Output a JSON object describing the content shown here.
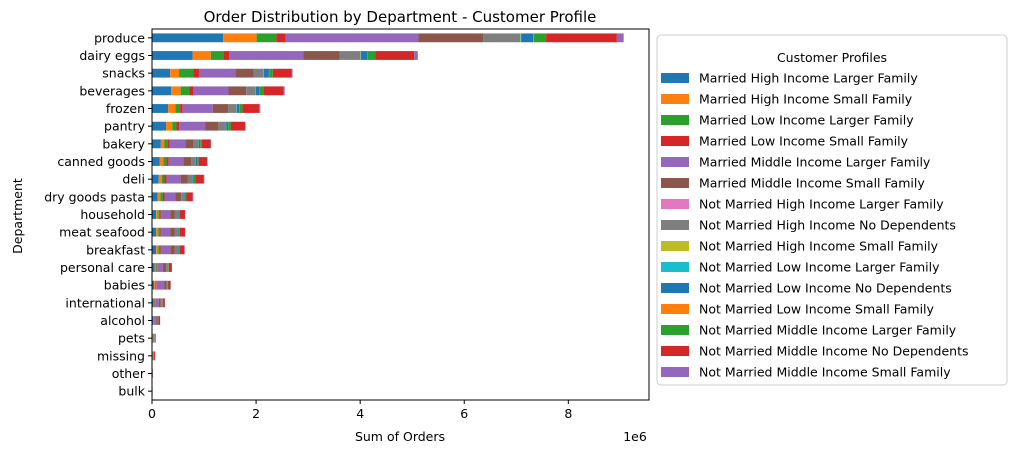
{
  "chart_data": {
    "type": "bar",
    "orientation": "horizontal",
    "stacked": true,
    "title": "Order Distribution by Department - Customer Profile",
    "xlabel": "Sum of Orders",
    "ylabel": "Department",
    "x_offset_label": "1e6",
    "xlim": [
      0,
      9.55
    ],
    "x_ticks": [
      0,
      2,
      4,
      6,
      8
    ],
    "x_tick_labels": [
      "0",
      "2",
      "4",
      "6",
      "8"
    ],
    "x_units": "millions of orders (x 1e6)",
    "grid": false,
    "legend": {
      "title": "Customer Profiles",
      "placement": "outside right"
    },
    "categories": [
      "produce",
      "dairy eggs",
      "snacks",
      "beverages",
      "frozen",
      "pantry",
      "bakery",
      "canned goods",
      "deli",
      "dry goods pasta",
      "household",
      "meat seafood",
      "breakfast",
      "personal care",
      "babies",
      "international",
      "alcohol",
      "pets",
      "missing",
      "other",
      "bulk"
    ],
    "series": [
      {
        "name": "Married High Income Larger Family",
        "color": "#1f77b4",
        "values": [
          1.37,
          0.78,
          0.35,
          0.37,
          0.31,
          0.27,
          0.17,
          0.15,
          0.13,
          0.11,
          0.08,
          0.08,
          0.08,
          0.05,
          0.04,
          0.03,
          0.02,
          0.01,
          0.01,
          0.003,
          0.002
        ]
      },
      {
        "name": "Married High Income Small Family",
        "color": "#ff7f0e",
        "values": [
          0.64,
          0.35,
          0.17,
          0.18,
          0.14,
          0.12,
          0.07,
          0.07,
          0.06,
          0.05,
          0.04,
          0.04,
          0.04,
          0.02,
          0.02,
          0.01,
          0.01,
          0.005,
          0.003,
          0.001,
          0.001
        ]
      },
      {
        "name": "Married Low Income Larger Family",
        "color": "#2ca02c",
        "values": [
          0.38,
          0.24,
          0.27,
          0.17,
          0.09,
          0.08,
          0.06,
          0.06,
          0.05,
          0.05,
          0.04,
          0.04,
          0.04,
          0.02,
          0.02,
          0.01,
          0.01,
          0.005,
          0.003,
          0.001,
          0.001
        ]
      },
      {
        "name": "Married Low Income Small Family",
        "color": "#d62728",
        "values": [
          0.18,
          0.11,
          0.12,
          0.08,
          0.05,
          0.05,
          0.04,
          0.04,
          0.04,
          0.03,
          0.02,
          0.02,
          0.02,
          0.01,
          0.01,
          0.01,
          0.005,
          0.003,
          0.002,
          0.001,
          0.0005
        ]
      },
      {
        "name": "Married Middle Income Larger Family",
        "color": "#9467bd",
        "values": [
          2.55,
          1.43,
          0.69,
          0.67,
          0.58,
          0.5,
          0.3,
          0.28,
          0.27,
          0.21,
          0.17,
          0.17,
          0.17,
          0.11,
          0.15,
          0.07,
          0.04,
          0.02,
          0.01,
          0.005,
          0.003
        ]
      },
      {
        "name": "Married Middle Income Small Family",
        "color": "#8c564b",
        "values": [
          1.25,
          0.7,
          0.35,
          0.34,
          0.29,
          0.26,
          0.16,
          0.15,
          0.14,
          0.11,
          0.09,
          0.09,
          0.09,
          0.06,
          0.04,
          0.04,
          0.02,
          0.01,
          0.005,
          0.002,
          0.001
        ]
      },
      {
        "name": "Not Married High Income Larger Family",
        "color": "#e377c2",
        "values": [
          0.003,
          0.002,
          0.001,
          0.001,
          0.001,
          0.001,
          0.0005,
          0.0005,
          0.0005,
          0.0005,
          0.0003,
          0.0003,
          0.0003,
          0.0002,
          0.0001,
          0.0001,
          0.0001,
          0.0001,
          0.0,
          0.0,
          0.0
        ]
      },
      {
        "name": "Not Married High Income No Dependents",
        "color": "#7f7f7f",
        "values": [
          0.7,
          0.39,
          0.19,
          0.18,
          0.16,
          0.14,
          0.09,
          0.08,
          0.08,
          0.06,
          0.05,
          0.05,
          0.05,
          0.03,
          0.02,
          0.02,
          0.01,
          0.005,
          0.003,
          0.001,
          0.001
        ]
      },
      {
        "name": "Not Married High Income Small Family",
        "color": "#bcbd22",
        "values": [
          0.01,
          0.005,
          0.003,
          0.003,
          0.003,
          0.002,
          0.002,
          0.002,
          0.002,
          0.001,
          0.001,
          0.001,
          0.001,
          0.0005,
          0.0005,
          0.0003,
          0.0002,
          0.0001,
          0.0001,
          0.0,
          0.0
        ]
      },
      {
        "name": "Not Married Low Income Larger Family",
        "color": "#17becf",
        "values": [
          0.01,
          0.005,
          0.003,
          0.003,
          0.003,
          0.002,
          0.002,
          0.002,
          0.002,
          0.001,
          0.001,
          0.001,
          0.001,
          0.0005,
          0.0005,
          0.0003,
          0.0002,
          0.0001,
          0.0001,
          0.0,
          0.0
        ]
      },
      {
        "name": "Not Married Low Income No Dependents",
        "color": "#1f77b4",
        "values": [
          0.23,
          0.13,
          0.1,
          0.07,
          0.05,
          0.04,
          0.03,
          0.03,
          0.03,
          0.02,
          0.02,
          0.02,
          0.02,
          0.01,
          0.005,
          0.005,
          0.005,
          0.003,
          0.002,
          0.001,
          0.0005
        ]
      },
      {
        "name": "Not Married Low Income Small Family",
        "color": "#ff7f0e",
        "values": [
          0.01,
          0.005,
          0.004,
          0.003,
          0.003,
          0.002,
          0.002,
          0.002,
          0.002,
          0.001,
          0.001,
          0.001,
          0.001,
          0.0005,
          0.0005,
          0.0003,
          0.0002,
          0.0001,
          0.0001,
          0.0,
          0.0
        ]
      },
      {
        "name": "Not Married Middle Income Larger Family",
        "color": "#2ca02c",
        "values": [
          0.24,
          0.14,
          0.07,
          0.07,
          0.06,
          0.05,
          0.03,
          0.03,
          0.03,
          0.02,
          0.02,
          0.02,
          0.02,
          0.01,
          0.01,
          0.01,
          0.005,
          0.003,
          0.002,
          0.001,
          0.0005
        ]
      },
      {
        "name": "Not Married Middle Income No Dependents",
        "color": "#d62728",
        "values": [
          1.36,
          0.75,
          0.36,
          0.39,
          0.32,
          0.27,
          0.17,
          0.16,
          0.16,
          0.12,
          0.1,
          0.1,
          0.09,
          0.06,
          0.04,
          0.04,
          0.03,
          0.01,
          0.02,
          0.002,
          0.001
        ]
      },
      {
        "name": "Not Married Middle Income Small Family",
        "color": "#9467bd",
        "values": [
          0.13,
          0.07,
          0.02,
          0.02,
          0.02,
          0.01,
          0.01,
          0.01,
          0.01,
          0.01,
          0.005,
          0.005,
          0.005,
          0.003,
          0.002,
          0.002,
          0.001,
          0.001,
          0.001,
          0.0,
          0.0
        ]
      }
    ]
  }
}
